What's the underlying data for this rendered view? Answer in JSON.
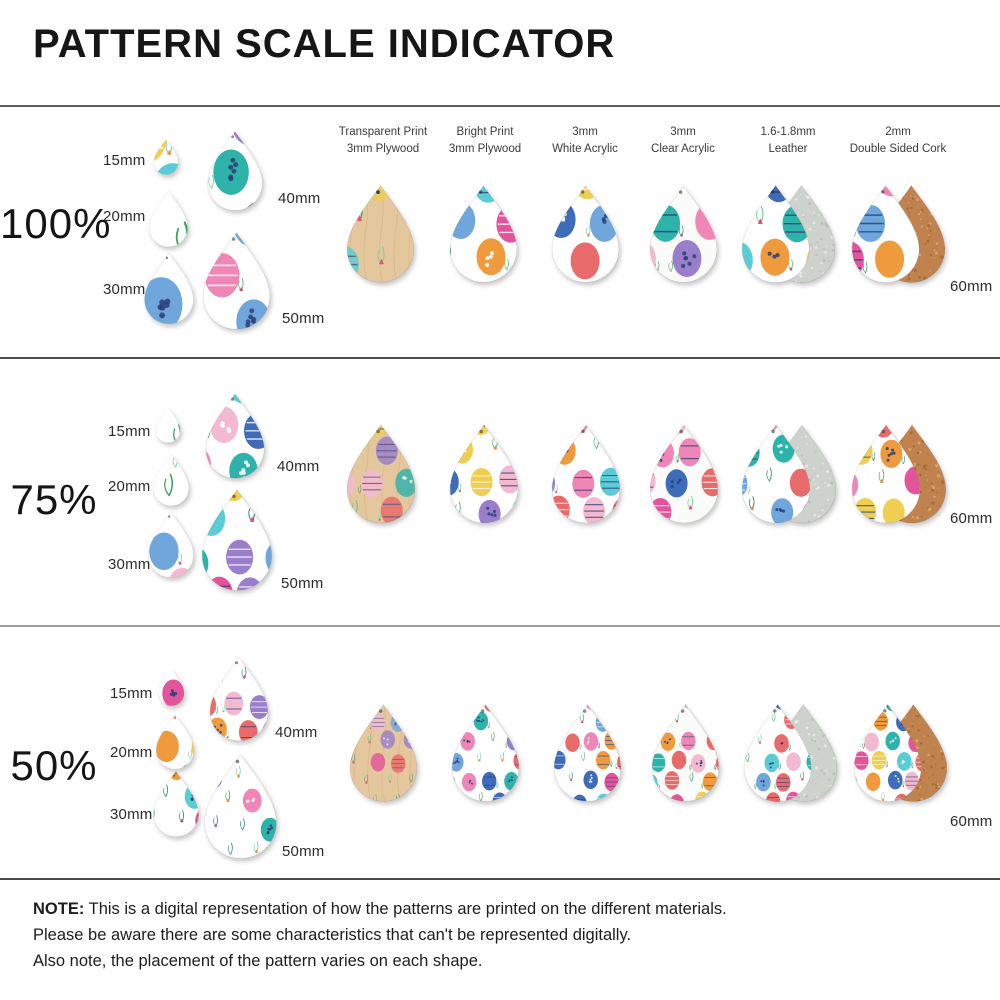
{
  "title": "PATTERN SCALE INDICATOR",
  "columns": [
    {
      "line1": "Transparent Print",
      "line2": "3mm Plywood"
    },
    {
      "line1": "Bright Print",
      "line2": "3mm Plywood"
    },
    {
      "line1": "3mm",
      "line2": "White Acrylic"
    },
    {
      "line1": "3mm",
      "line2": "Clear Acrylic"
    },
    {
      "line1": "1.6-1.8mm",
      "line2": "Leather"
    },
    {
      "line1": "2mm",
      "line2": "Double Sided Cork"
    }
  ],
  "rows": [
    {
      "scale_label": "100%",
      "scale_value": 1.0,
      "sizes": [
        "15mm",
        "20mm",
        "30mm",
        "40mm",
        "50mm"
      ],
      "right_label": "60mm"
    },
    {
      "scale_label": "75%",
      "scale_value": 0.75,
      "sizes": [
        "15mm",
        "20mm",
        "30mm",
        "40mm",
        "50mm"
      ],
      "right_label": "60mm"
    },
    {
      "scale_label": "50%",
      "scale_value": 0.5,
      "sizes": [
        "15mm",
        "20mm",
        "30mm",
        "40mm",
        "50mm"
      ],
      "right_label": "60mm"
    }
  ],
  "note": {
    "label": "NOTE:",
    "line1": "This is a digital representation of how the patterns are printed on the different materials.",
    "line2": "Please be aware there are some characteristics that can't be represented digitally.",
    "line3": "Also note, the placement of the pattern varies on each shape."
  },
  "colors": {
    "egg_palette": [
      "#ef86b5",
      "#e4549b",
      "#3e6cb8",
      "#6fa6dc",
      "#2eb3ab",
      "#59ccd6",
      "#9a7ecb",
      "#f09a3e",
      "#eecf52",
      "#f3b9d0",
      "#e96a6a"
    ],
    "foliage": [
      "#3f9e5f",
      "#7fcf9f",
      "#2e8e6a",
      "#57b87f"
    ],
    "flowers": [
      "#e8447f",
      "#f08c3a",
      "#dd3a6d"
    ],
    "decor_dark": "#2b3f77",
    "decor_light": "#ffffff",
    "plywood": "#e5c79e",
    "plywood_grain": "#d2ab77",
    "cork": "#c0824e",
    "cork_speckles": [
      "#a2683a",
      "#dfa86e"
    ],
    "leather": "#ced2cc",
    "leather_speckles": [
      "#b9bfb7",
      "#e9ece7"
    ]
  }
}
